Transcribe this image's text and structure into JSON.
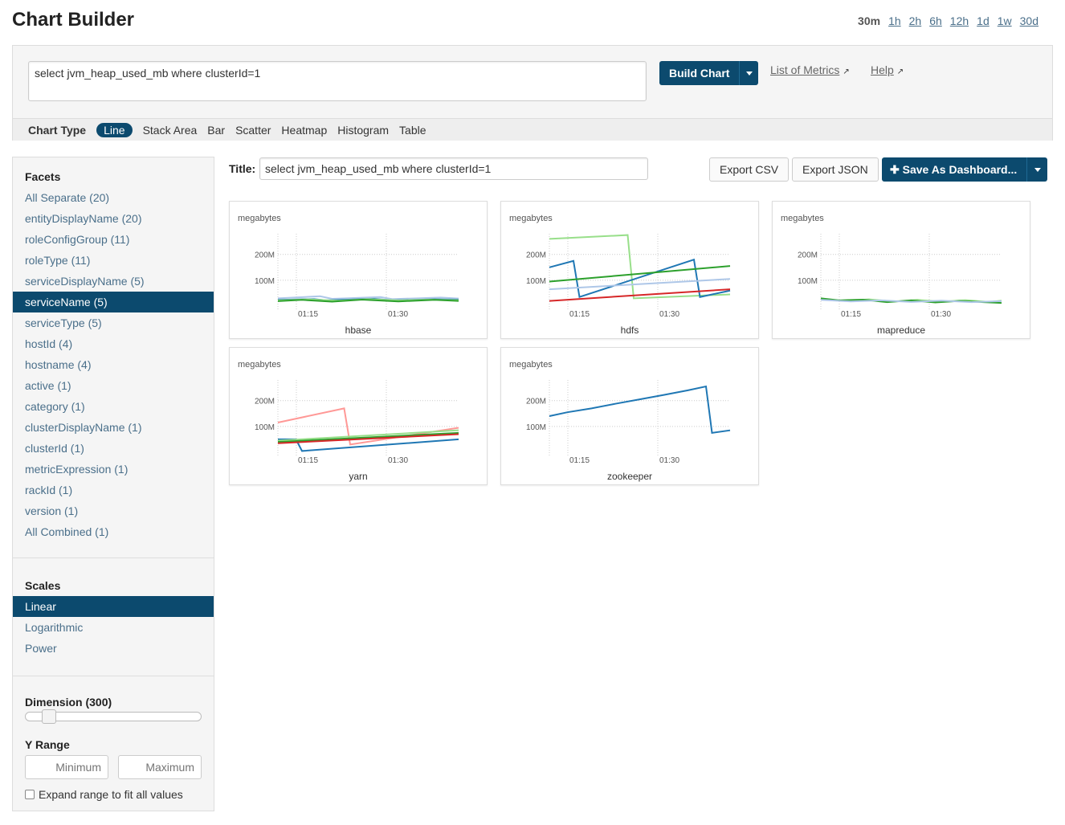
{
  "header": {
    "title": "Chart Builder",
    "time_ranges": [
      {
        "label": "30m",
        "active": true
      },
      {
        "label": "1h",
        "active": false
      },
      {
        "label": "2h",
        "active": false
      },
      {
        "label": "6h",
        "active": false
      },
      {
        "label": "12h",
        "active": false
      },
      {
        "label": "1d",
        "active": false
      },
      {
        "label": "1w",
        "active": false
      },
      {
        "label": "30d",
        "active": false
      }
    ]
  },
  "query": {
    "value": "select jvm_heap_used_mb where clusterId=1",
    "build_label": "Build Chart",
    "list_metrics_label": "List of Metrics",
    "help_label": "Help"
  },
  "chart_type": {
    "label": "Chart Type",
    "options": [
      "Line",
      "Stack Area",
      "Bar",
      "Scatter",
      "Heatmap",
      "Histogram",
      "Table"
    ],
    "selected": "Line"
  },
  "sidebar": {
    "facets_heading": "Facets",
    "facets": [
      "All Separate (20)",
      "entityDisplayName (20)",
      "roleConfigGroup (11)",
      "roleType (11)",
      "serviceDisplayName (5)",
      "serviceName (5)",
      "serviceType (5)",
      "hostId (4)",
      "hostname (4)",
      "active (1)",
      "category (1)",
      "clusterDisplayName (1)",
      "clusterId (1)",
      "metricExpression (1)",
      "rackId (1)",
      "version (1)",
      "All Combined (1)"
    ],
    "selected_facet": "serviceName (5)",
    "scales_heading": "Scales",
    "scales": [
      "Linear",
      "Logarithmic",
      "Power"
    ],
    "selected_scale": "Linear",
    "dimension_label": "Dimension (300)",
    "dimension_value": 300,
    "yrange_label": "Y Range",
    "min_placeholder": "Minimum",
    "max_placeholder": "Maximum",
    "expand_label": "Expand range to fit all values",
    "expand_checked": false
  },
  "toolbar": {
    "title_label": "Title:",
    "title_value": "select jvm_heap_used_mb where clusterId=1",
    "export_csv": "Export CSV",
    "export_json": "Export JSON",
    "save_dashboard": "Save As Dashboard..."
  },
  "colors": {
    "accent": "#0c4a6e",
    "series": [
      "#1f77b4",
      "#aec7e8",
      "#2ca02c",
      "#98df8a",
      "#d62728",
      "#ff9896"
    ]
  },
  "chart_data": [
    {
      "type": "line",
      "title": "hbase",
      "ylabel": "megabytes",
      "yticks": [
        "200M",
        "100M"
      ],
      "xticks": [
        "01:15",
        "01:30"
      ],
      "ylim": [
        0,
        280
      ],
      "series": [
        {
          "color": "#aec7e8",
          "x": [
            0,
            7,
            9,
            17,
            19,
            27,
            30
          ],
          "y": [
            30,
            38,
            28,
            35,
            27,
            33,
            29
          ]
        },
        {
          "color": "#1f77b4",
          "x": [
            0,
            6,
            8,
            16,
            19,
            26,
            30
          ],
          "y": [
            24,
            27,
            22,
            28,
            22,
            26,
            25
          ]
        },
        {
          "color": "#98df8a",
          "x": [
            0,
            5,
            10,
            15,
            20,
            25,
            30
          ],
          "y": [
            22,
            26,
            21,
            27,
            22,
            25,
            23
          ]
        },
        {
          "color": "#2ca02c",
          "x": [
            0,
            4,
            9,
            14,
            20,
            26,
            30
          ],
          "y": [
            19,
            24,
            17,
            25,
            18,
            24,
            20
          ]
        }
      ]
    },
    {
      "type": "line",
      "title": "hdfs",
      "ylabel": "megabytes",
      "yticks": [
        "200M",
        "100M"
      ],
      "xticks": [
        "01:15",
        "01:30"
      ],
      "ylim": [
        0,
        280
      ],
      "series": [
        {
          "color": "#98df8a",
          "x": [
            0,
            13,
            14,
            30
          ],
          "y": [
            260,
            275,
            30,
            45
          ]
        },
        {
          "color": "#1f77b4",
          "x": [
            0,
            4,
            5,
            24,
            25,
            30
          ],
          "y": [
            150,
            175,
            35,
            180,
            35,
            60
          ]
        },
        {
          "color": "#2ca02c",
          "x": [
            0,
            30
          ],
          "y": [
            95,
            155
          ]
        },
        {
          "color": "#aec7e8",
          "x": [
            0,
            30
          ],
          "y": [
            65,
            105
          ]
        },
        {
          "color": "#d62728",
          "x": [
            0,
            30
          ],
          "y": [
            20,
            65
          ]
        }
      ]
    },
    {
      "type": "line",
      "title": "mapreduce",
      "ylabel": "megabytes",
      "yticks": [
        "200M",
        "100M"
      ],
      "xticks": [
        "01:15",
        "01:30"
      ],
      "ylim": [
        0,
        280
      ],
      "series": [
        {
          "color": "#98df8a",
          "x": [
            0,
            4,
            8,
            12,
            16,
            20,
            24,
            28,
            30
          ],
          "y": [
            28,
            20,
            26,
            18,
            24,
            17,
            23,
            16,
            21
          ]
        },
        {
          "color": "#2ca02c",
          "x": [
            0,
            3,
            7,
            11,
            15,
            19,
            23,
            27,
            30
          ],
          "y": [
            30,
            22,
            25,
            15,
            22,
            14,
            20,
            15,
            12
          ]
        },
        {
          "color": "#aec7e8",
          "x": [
            0,
            5,
            10,
            15,
            20,
            25,
            30
          ],
          "y": [
            24,
            18,
            22,
            16,
            21,
            15,
            19
          ]
        }
      ]
    },
    {
      "type": "line",
      "title": "yarn",
      "ylabel": "megabytes",
      "yticks": [
        "200M",
        "100M"
      ],
      "xticks": [
        "01:15",
        "01:30"
      ],
      "ylim": [
        0,
        280
      ],
      "series": [
        {
          "color": "#ff9896",
          "x": [
            0,
            11,
            12,
            30
          ],
          "y": [
            115,
            170,
            30,
            95
          ]
        },
        {
          "color": "#1f77b4",
          "x": [
            0,
            3,
            4,
            30
          ],
          "y": [
            50,
            50,
            5,
            50
          ]
        },
        {
          "color": "#98df8a",
          "x": [
            0,
            30
          ],
          "y": [
            45,
            85
          ]
        },
        {
          "color": "#2ca02c",
          "x": [
            0,
            30
          ],
          "y": [
            40,
            75
          ]
        },
        {
          "color": "#d62728",
          "x": [
            0,
            30
          ],
          "y": [
            35,
            70
          ]
        }
      ]
    },
    {
      "type": "line",
      "title": "zookeeper",
      "ylabel": "megabytes",
      "yticks": [
        "200M",
        "100M"
      ],
      "xticks": [
        "01:15",
        "01:30"
      ],
      "ylim": [
        0,
        280
      ],
      "series": [
        {
          "color": "#1f77b4",
          "x": [
            0,
            3,
            7,
            11,
            15,
            19,
            23,
            26,
            27,
            30
          ],
          "y": [
            140,
            155,
            170,
            188,
            205,
            222,
            240,
            255,
            75,
            85
          ]
        }
      ]
    }
  ]
}
